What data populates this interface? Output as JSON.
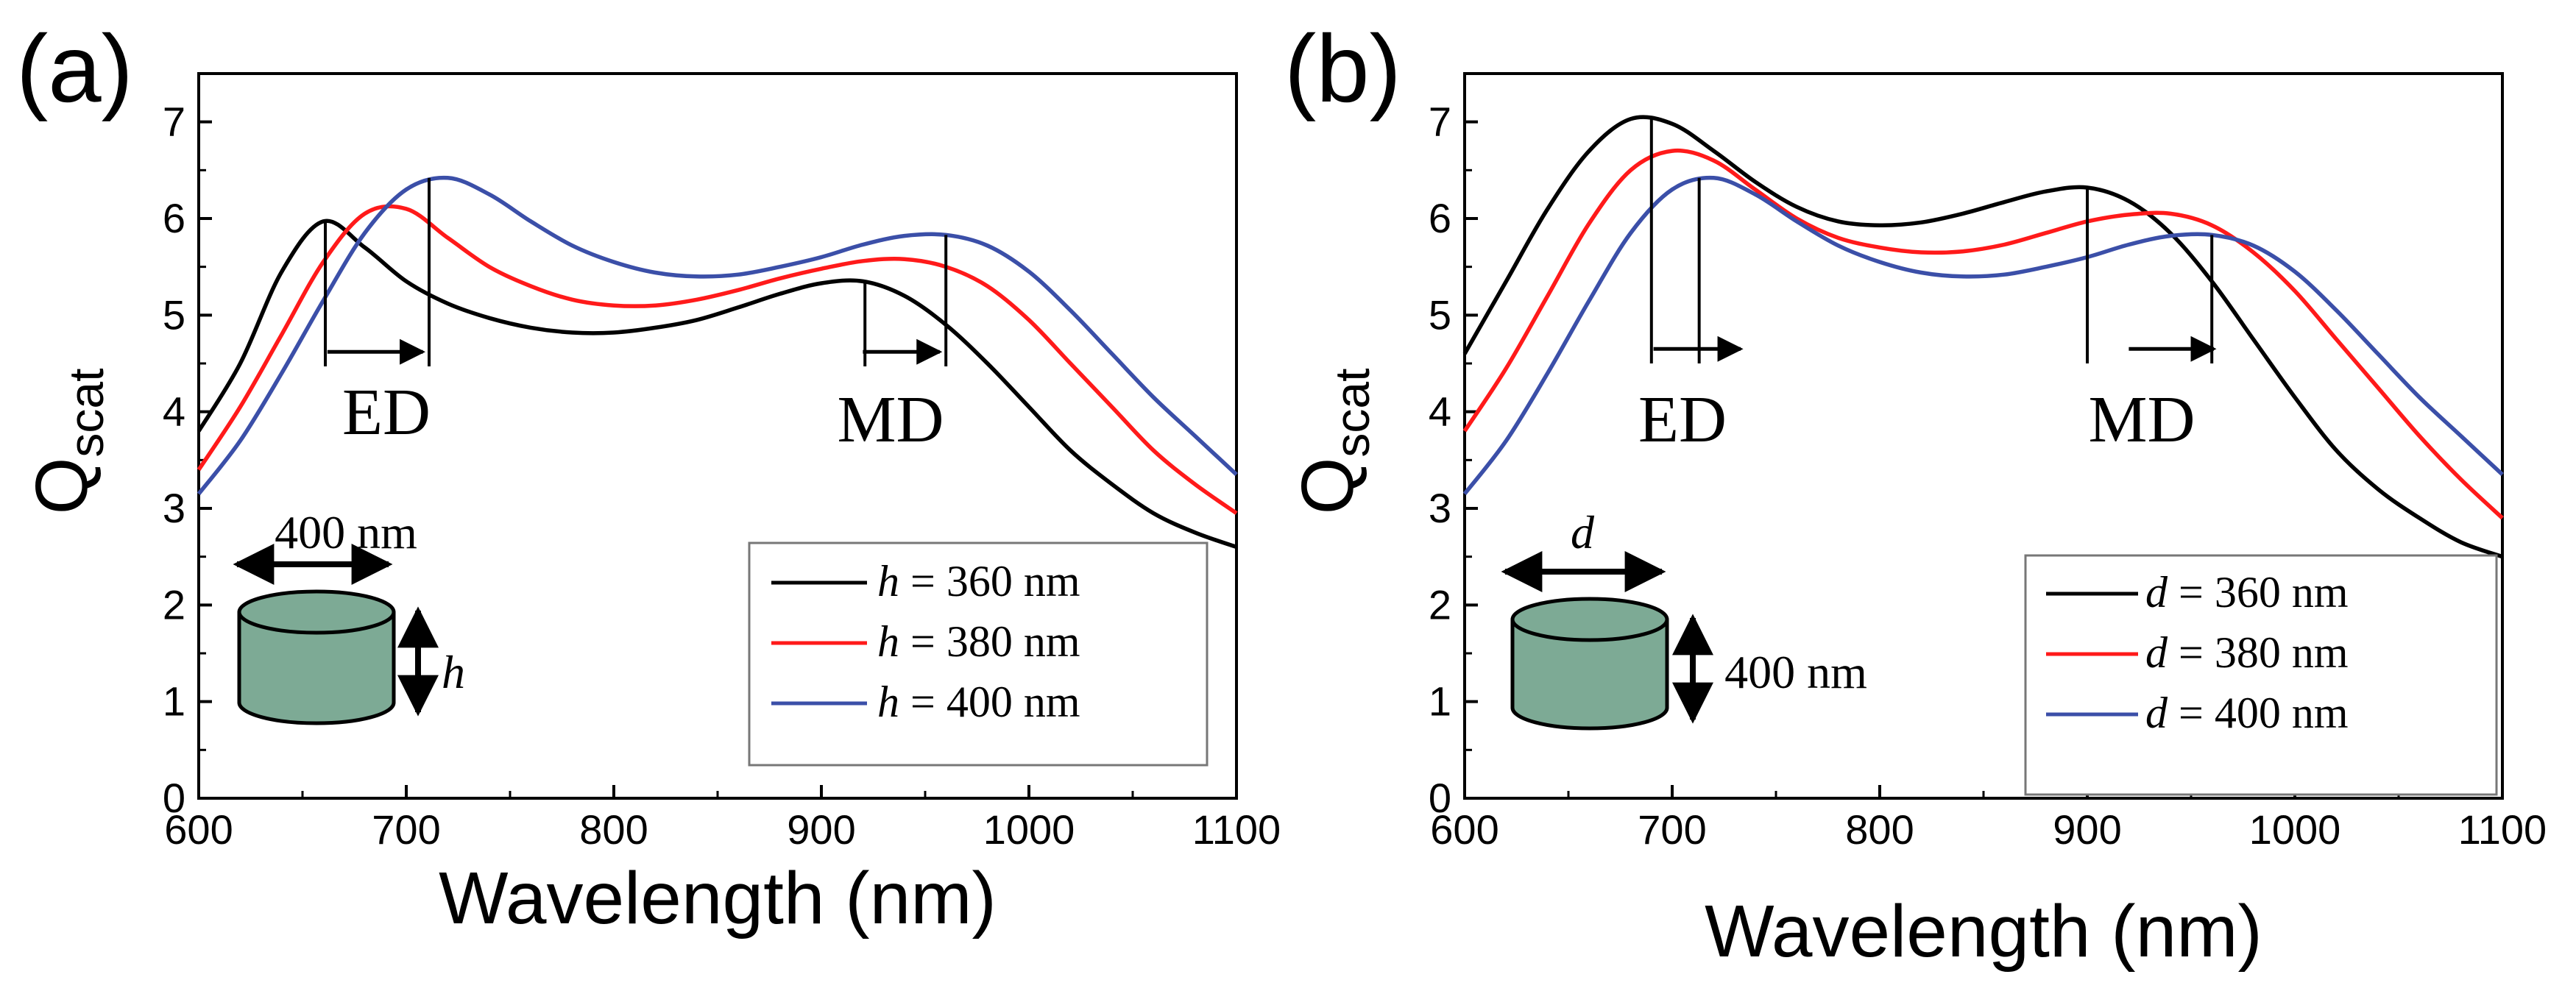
{
  "colors": {
    "black": "#000000",
    "red": "#ff1a1a",
    "blue": "#3b4fa8",
    "cylinder_fill": "#7daa95",
    "axis": "#000000"
  },
  "chart_data": [
    {
      "type": "line",
      "panel_label": "(a)",
      "xlabel": "Wavelength (nm)",
      "ylabel_main": "Q",
      "ylabel_sub": "scat",
      "xlim": [
        600,
        1100
      ],
      "ylim": [
        0,
        7.5
      ],
      "xticks": [
        "600",
        "700",
        "800",
        "900",
        "1000",
        "1100"
      ],
      "yticks": [
        "0",
        "1",
        "2",
        "3",
        "4",
        "5",
        "6",
        "7"
      ],
      "grid": false,
      "legend_position": "bottom-right",
      "series": [
        {
          "name": "h = 360 nm",
          "var": "h",
          "label_rest": " = 360 nm",
          "color": "#000000",
          "x": [
            600,
            620,
            640,
            660,
            680,
            700,
            720,
            740,
            760,
            780,
            800,
            820,
            840,
            860,
            880,
            900,
            920,
            940,
            960,
            980,
            1000,
            1020,
            1040,
            1060,
            1080,
            1100
          ],
          "y": [
            3.8,
            4.5,
            5.45,
            5.97,
            5.7,
            5.35,
            5.12,
            4.97,
            4.87,
            4.82,
            4.82,
            4.87,
            4.95,
            5.08,
            5.22,
            5.33,
            5.35,
            5.2,
            4.9,
            4.5,
            4.05,
            3.6,
            3.25,
            2.95,
            2.75,
            2.6
          ]
        },
        {
          "name": "h = 380 nm",
          "var": "h",
          "label_rest": " = 380 nm",
          "color": "#ff1a1a",
          "x": [
            600,
            620,
            640,
            660,
            680,
            700,
            720,
            740,
            760,
            780,
            800,
            820,
            840,
            860,
            880,
            900,
            920,
            940,
            960,
            980,
            1000,
            1020,
            1040,
            1060,
            1080,
            1100
          ],
          "y": [
            3.4,
            4.05,
            4.8,
            5.55,
            6.05,
            6.1,
            5.8,
            5.5,
            5.3,
            5.16,
            5.1,
            5.1,
            5.16,
            5.26,
            5.38,
            5.48,
            5.56,
            5.58,
            5.5,
            5.3,
            4.95,
            4.5,
            4.05,
            3.6,
            3.25,
            2.95
          ]
        },
        {
          "name": "h = 400 nm",
          "var": "h",
          "label_rest": " = 400 nm",
          "color": "#3b4fa8",
          "x": [
            600,
            620,
            640,
            660,
            680,
            700,
            720,
            740,
            760,
            780,
            800,
            820,
            840,
            860,
            880,
            900,
            920,
            940,
            960,
            980,
            1000,
            1020,
            1040,
            1060,
            1080,
            1100
          ],
          "y": [
            3.15,
            3.7,
            4.4,
            5.15,
            5.85,
            6.3,
            6.42,
            6.25,
            5.97,
            5.72,
            5.55,
            5.44,
            5.4,
            5.42,
            5.5,
            5.6,
            5.73,
            5.82,
            5.83,
            5.72,
            5.45,
            5.05,
            4.6,
            4.15,
            3.75,
            3.35
          ]
        }
      ],
      "annotations": {
        "ed_label": "ED",
        "md_label": "MD",
        "ed_lines": [
          {
            "x": 661,
            "y": 5.97
          },
          {
            "x": 711,
            "y": 6.42
          }
        ],
        "md_lines": [
          {
            "x": 921,
            "y": 5.35
          },
          {
            "x": 960,
            "y": 5.83
          }
        ],
        "ed_arrow": [
          662,
          708,
          4.62
        ],
        "md_arrow": [
          920,
          957,
          4.62
        ],
        "inset_dim_top": "400 nm",
        "inset_dim_side": "h"
      }
    },
    {
      "type": "line",
      "panel_label": "(b)",
      "xlabel": "Wavelength (nm)",
      "ylabel_main": "Q",
      "ylabel_sub": "scat",
      "xlim": [
        600,
        1100
      ],
      "ylim": [
        0,
        7.5
      ],
      "xticks": [
        "600",
        "700",
        "800",
        "900",
        "1000",
        "1100"
      ],
      "yticks": [
        "0",
        "1",
        "2",
        "3",
        "4",
        "5",
        "6",
        "7"
      ],
      "grid": false,
      "legend_position": "bottom-right",
      "series": [
        {
          "name": "d = 360 nm",
          "var": "d",
          "label_rest": " = 360 nm",
          "color": "#000000",
          "x": [
            600,
            620,
            640,
            660,
            680,
            700,
            720,
            740,
            760,
            780,
            800,
            820,
            840,
            860,
            880,
            900,
            920,
            940,
            960,
            980,
            1000,
            1020,
            1040,
            1060,
            1080,
            1100
          ],
          "y": [
            4.6,
            5.35,
            6.1,
            6.7,
            7.03,
            6.98,
            6.7,
            6.38,
            6.12,
            5.97,
            5.93,
            5.96,
            6.05,
            6.17,
            6.28,
            6.32,
            6.18,
            5.85,
            5.35,
            4.75,
            4.15,
            3.6,
            3.2,
            2.9,
            2.65,
            2.5
          ]
        },
        {
          "name": "d = 380 nm",
          "var": "d",
          "label_rest": " = 380 nm",
          "color": "#ff1a1a",
          "x": [
            600,
            620,
            640,
            660,
            680,
            700,
            720,
            740,
            760,
            780,
            800,
            820,
            840,
            860,
            880,
            900,
            920,
            940,
            960,
            980,
            1000,
            1020,
            1040,
            1060,
            1080,
            1100
          ],
          "y": [
            3.8,
            4.45,
            5.2,
            5.95,
            6.5,
            6.7,
            6.6,
            6.3,
            6.0,
            5.8,
            5.7,
            5.65,
            5.66,
            5.73,
            5.85,
            5.97,
            6.04,
            6.05,
            5.93,
            5.65,
            5.25,
            4.75,
            4.25,
            3.75,
            3.3,
            2.9
          ]
        },
        {
          "name": "d = 400 nm",
          "var": "d",
          "label_rest": " = 400 nm",
          "color": "#3b4fa8",
          "x": [
            600,
            620,
            640,
            660,
            680,
            700,
            720,
            740,
            760,
            780,
            800,
            820,
            840,
            860,
            880,
            900,
            920,
            940,
            960,
            980,
            1000,
            1020,
            1040,
            1060,
            1080,
            1100
          ],
          "y": [
            3.15,
            3.7,
            4.4,
            5.15,
            5.85,
            6.3,
            6.42,
            6.25,
            5.97,
            5.72,
            5.55,
            5.44,
            5.4,
            5.42,
            5.5,
            5.6,
            5.73,
            5.82,
            5.83,
            5.72,
            5.45,
            5.05,
            4.6,
            4.15,
            3.75,
            3.35
          ]
        }
      ],
      "annotations": {
        "ed_label": "ED",
        "md_label": "MD",
        "ed_lines": [
          {
            "x": 690,
            "y": 7.03
          },
          {
            "x": 713,
            "y": 6.42
          }
        ],
        "md_lines": [
          {
            "x": 900,
            "y": 6.32
          },
          {
            "x": 960,
            "y": 5.83
          }
        ],
        "ed_arrow": [
          691,
          733,
          4.65
        ],
        "md_arrow": [
          920,
          961,
          4.65
        ],
        "inset_dim_top": "d",
        "inset_dim_side": "400 nm"
      }
    }
  ]
}
